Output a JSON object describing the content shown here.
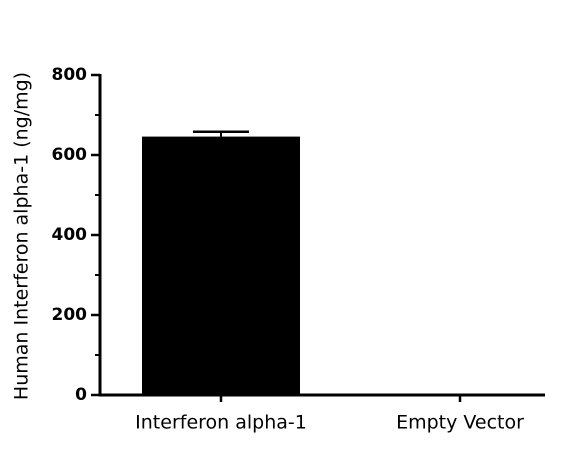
{
  "chart_data": {
    "type": "bar",
    "ylabel": "Human Interferon alpha-1  (ng/mg)",
    "categories": [
      "Interferon alpha-1",
      "Empty Vector"
    ],
    "values": [
      646,
      0
    ],
    "errors": [
      12,
      0
    ],
    "color": "#000000",
    "ylim": [
      0,
      800
    ],
    "yticks": [
      0,
      200,
      400,
      600,
      800
    ],
    "yminor_ticks": [
      100,
      300,
      500,
      700
    ]
  }
}
